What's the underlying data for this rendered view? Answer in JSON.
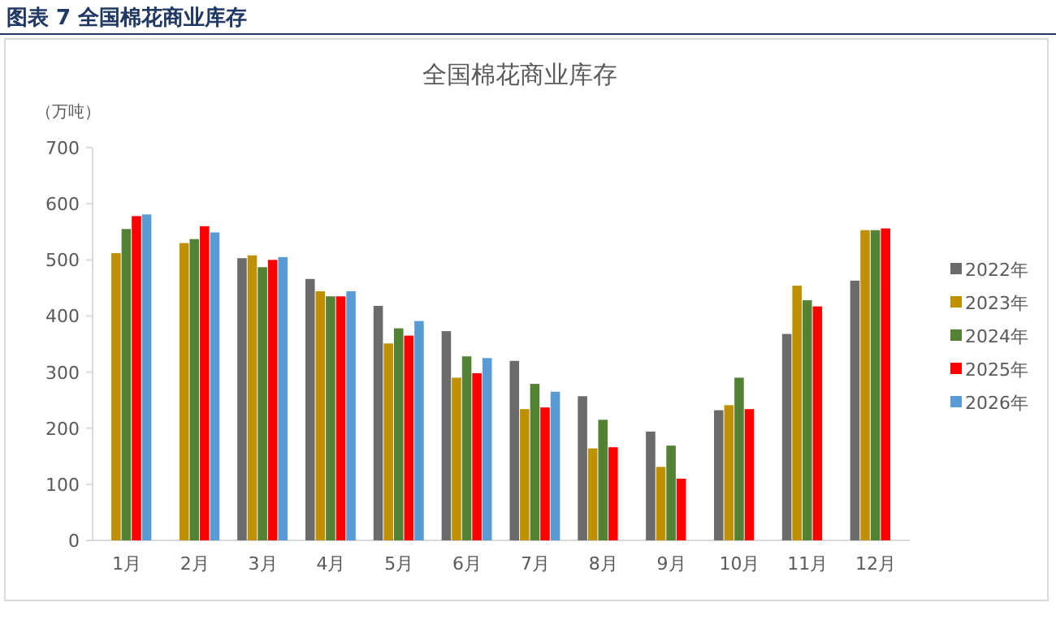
{
  "chart_data": {
    "type": "bar",
    "title": "全国棉花商业库存",
    "ylabel": "（万吨）",
    "annotations": [
      "图表 7  全国棉花商业库存"
    ],
    "categories": [
      "1月",
      "2月",
      "3月",
      "4月",
      "5月",
      "6月",
      "7月",
      "8月",
      "9月",
      "10月",
      "11月",
      "12月"
    ],
    "series": [
      {
        "name": "2022年",
        "color": "#6b6b6b",
        "values": [
          null,
          null,
          503,
          466,
          418,
          373,
          320,
          257,
          194,
          232,
          368,
          463
        ]
      },
      {
        "name": "2023年",
        "color": "#bf9000",
        "values": [
          512,
          530,
          508,
          444,
          351,
          290,
          234,
          164,
          131,
          241,
          454,
          553
        ]
      },
      {
        "name": "2024年",
        "color": "#548235",
        "values": [
          555,
          537,
          487,
          435,
          378,
          328,
          279,
          215,
          169,
          290,
          428,
          553
        ]
      },
      {
        "name": "2025年",
        "color": "#ff0000",
        "values": [
          578,
          560,
          500,
          435,
          365,
          298,
          237,
          166,
          110,
          234,
          417,
          556
        ]
      },
      {
        "name": "2026年",
        "color": "#5b9bd5",
        "values": [
          581,
          549,
          505,
          444,
          391,
          325,
          265,
          null,
          null,
          null,
          null,
          null
        ]
      }
    ],
    "ylim": [
      0,
      700
    ],
    "yticks": [
      0,
      100,
      200,
      300,
      400,
      500,
      600,
      700
    ],
    "legend": "right"
  }
}
